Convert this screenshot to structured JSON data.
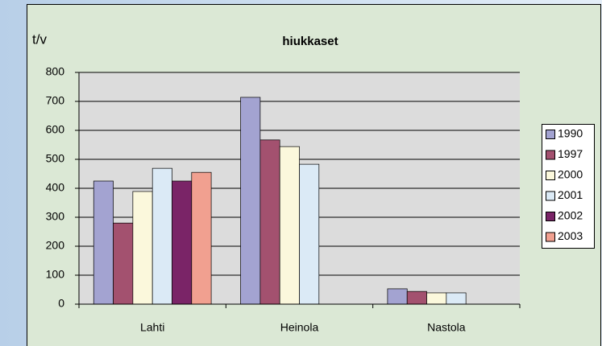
{
  "chart_data": {
    "type": "bar",
    "title": "hiukkaset",
    "y_label": "t/v",
    "categories": [
      "Lahti",
      "Heinola",
      "Nastola"
    ],
    "series": [
      {
        "name": "1990",
        "color": "#a3a3d1",
        "values": [
          425,
          714,
          53
        ]
      },
      {
        "name": "1997",
        "color": "#a3516f",
        "values": [
          280,
          567,
          44
        ]
      },
      {
        "name": "2000",
        "color": "#fbf8dc",
        "values": [
          389,
          544,
          39
        ]
      },
      {
        "name": "2001",
        "color": "#dbeaf6",
        "values": [
          469,
          483,
          39
        ]
      },
      {
        "name": "2002",
        "color": "#7a2467",
        "values": [
          425,
          null,
          null
        ]
      },
      {
        "name": "2003",
        "color": "#f1a090",
        "values": [
          455,
          null,
          null
        ]
      }
    ],
    "ylim": [
      0,
      800
    ],
    "yticks": [
      0,
      100,
      200,
      300,
      400,
      500,
      600,
      700,
      800
    ],
    "grid": true,
    "legend": "right"
  }
}
